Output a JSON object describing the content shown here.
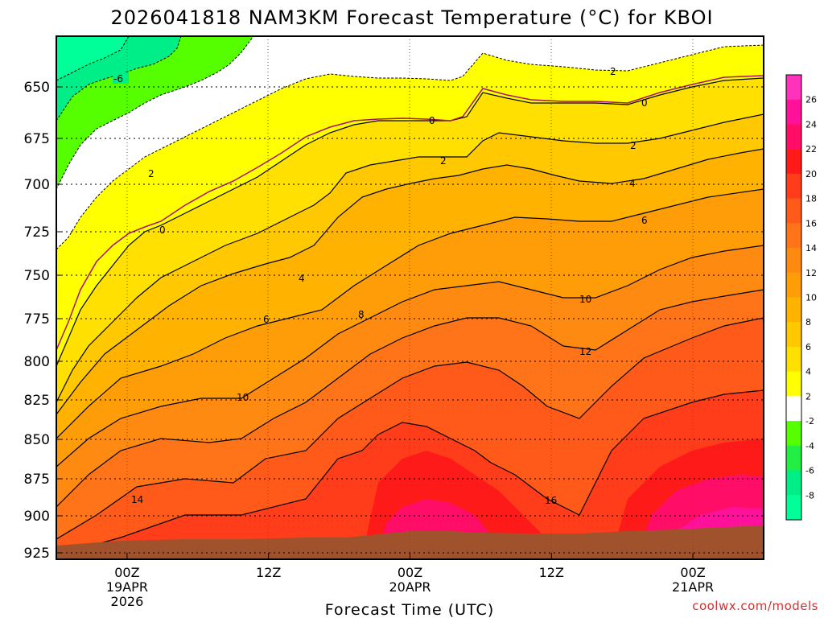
{
  "chart_data": {
    "type": "heatmap",
    "title": "2026041818 NAM3KM Forecast Temperature (°C) for KBOI",
    "xlabel": "Forecast Time (UTC)",
    "ylabel": "",
    "credit": "coolwx.com/models",
    "x_ticks": [
      {
        "label": "00Z",
        "sub1": "19APR",
        "sub2": "2026",
        "hour": 6
      },
      {
        "label": "12Z",
        "sub1": "",
        "sub2": "",
        "hour": 18
      },
      {
        "label": "00Z",
        "sub1": "20APR",
        "sub2": "",
        "hour": 30
      },
      {
        "label": "12Z",
        "sub1": "",
        "sub2": "",
        "hour": 42
      },
      {
        "label": "00Z",
        "sub1": "21APR",
        "sub2": "",
        "hour": 54
      }
    ],
    "xlim_hours": [
      0,
      60
    ],
    "y_ticks": [
      "650",
      "675",
      "700",
      "725",
      "750",
      "775",
      "800",
      "825",
      "850",
      "875",
      "900",
      "925"
    ],
    "ylim_hpa": [
      622,
      928
    ],
    "colorbar": {
      "labels": [
        "26",
        "24",
        "22",
        "20",
        "18",
        "16",
        "14",
        "12",
        "10",
        "8",
        "6",
        "4",
        "2",
        "-2",
        "-4",
        "-6",
        "-8"
      ],
      "colors": [
        "#ff33bb",
        "#ff1199",
        "#ff0d66",
        "#ff1a1a",
        "#ff3d1a",
        "#ff5a1a",
        "#ff7419",
        "#ff8a11",
        "#ff9d08",
        "#ffb300",
        "#ffc800",
        "#ffe000",
        "#ffff00",
        "#ffffff",
        "#55ff00",
        "#22ee44",
        "#00ee88",
        "#00ff99"
      ]
    },
    "contour_labels": [
      "-6",
      "2",
      "0",
      "2",
      "0",
      "2",
      "0",
      "2",
      "4",
      "6",
      "4",
      "6",
      "8",
      "10",
      "10",
      "12",
      "14",
      "16"
    ],
    "terrain_color": "#a0522d",
    "levels_celsius": [
      -8,
      -6,
      -4,
      -2,
      0,
      2,
      4,
      6,
      8,
      10,
      12,
      14,
      16,
      18,
      20,
      22,
      24,
      26
    ],
    "surface_hpa_at_hours": [
      [
        0,
        922
      ],
      [
        18,
        918
      ],
      [
        30,
        914
      ],
      [
        42,
        914
      ],
      [
        60,
        907
      ]
    ]
  }
}
